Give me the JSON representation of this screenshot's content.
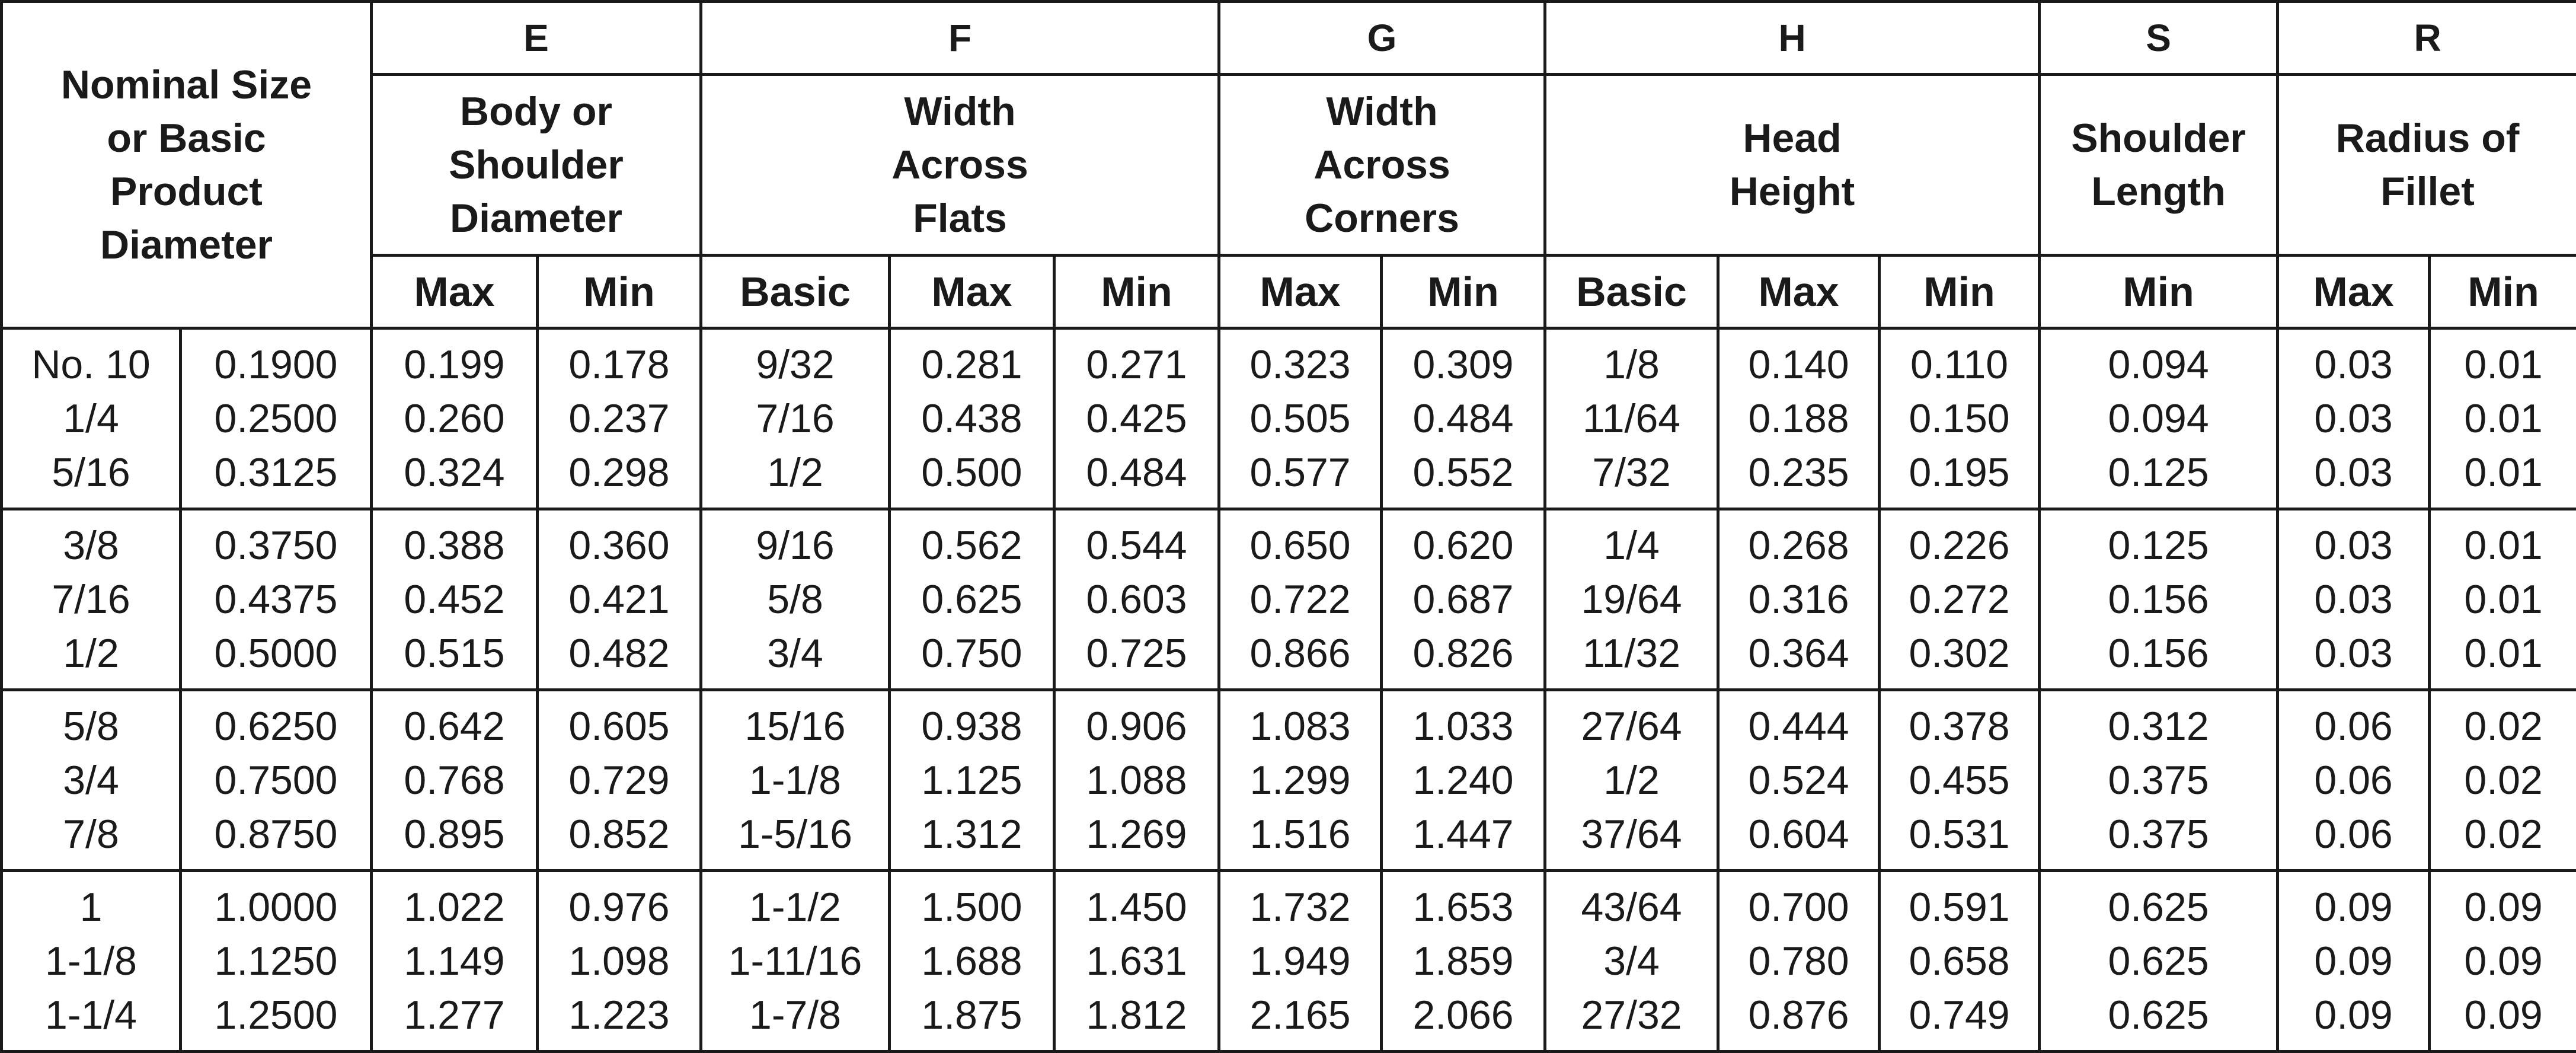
{
  "header": {
    "nominal": [
      "Nominal Size",
      "or Basic",
      "Product",
      "Diameter"
    ],
    "groups": [
      {
        "letter": "E",
        "desc": [
          "Body or",
          "Shoulder",
          "Diameter"
        ],
        "subs": [
          "Max",
          "Min"
        ]
      },
      {
        "letter": "F",
        "desc": [
          "Width",
          "Across",
          "Flats"
        ],
        "subs": [
          "Basic",
          "Max",
          "Min"
        ]
      },
      {
        "letter": "G",
        "desc": [
          "Width",
          "Across",
          "Corners"
        ],
        "subs": [
          "Max",
          "Min"
        ]
      },
      {
        "letter": "H",
        "desc": [
          "Head",
          "Height"
        ],
        "subs": [
          "Basic",
          "Max",
          "Min"
        ]
      },
      {
        "letter": "S",
        "desc": [
          "Shoulder",
          "Length"
        ],
        "subs": [
          "Min"
        ]
      },
      {
        "letter": "R",
        "desc": [
          "Radius of",
          "Fillet"
        ],
        "subs": [
          "Max",
          "Min"
        ]
      }
    ]
  },
  "groups": [
    {
      "size": [
        "No. 10",
        "1/4",
        "5/16"
      ],
      "dec": [
        "0.1900",
        "0.2500",
        "0.3125"
      ],
      "e_max": [
        "0.199",
        "0.260",
        "0.324"
      ],
      "e_min": [
        "0.178",
        "0.237",
        "0.298"
      ],
      "f_basic": [
        "9/32",
        "7/16",
        "1/2"
      ],
      "f_max": [
        "0.281",
        "0.438",
        "0.500"
      ],
      "f_min": [
        "0.271",
        "0.425",
        "0.484"
      ],
      "g_max": [
        "0.323",
        "0.505",
        "0.577"
      ],
      "g_min": [
        "0.309",
        "0.484",
        "0.552"
      ],
      "h_basic": [
        "1/8",
        "11/64",
        "7/32"
      ],
      "h_max": [
        "0.140",
        "0.188",
        "0.235"
      ],
      "h_min": [
        "0.110",
        "0.150",
        "0.195"
      ],
      "s_min": [
        "0.094",
        "0.094",
        "0.125"
      ],
      "r_max": [
        "0.03",
        "0.03",
        "0.03"
      ],
      "r_min": [
        "0.01",
        "0.01",
        "0.01"
      ]
    },
    {
      "size": [
        "3/8",
        "7/16",
        "1/2"
      ],
      "dec": [
        "0.3750",
        "0.4375",
        "0.5000"
      ],
      "e_max": [
        "0.388",
        "0.452",
        "0.515"
      ],
      "e_min": [
        "0.360",
        "0.421",
        "0.482"
      ],
      "f_basic": [
        "9/16",
        "5/8",
        "3/4"
      ],
      "f_max": [
        "0.562",
        "0.625",
        "0.750"
      ],
      "f_min": [
        "0.544",
        "0.603",
        "0.725"
      ],
      "g_max": [
        "0.650",
        "0.722",
        "0.866"
      ],
      "g_min": [
        "0.620",
        "0.687",
        "0.826"
      ],
      "h_basic": [
        "1/4",
        "19/64",
        "11/32"
      ],
      "h_max": [
        "0.268",
        "0.316",
        "0.364"
      ],
      "h_min": [
        "0.226",
        "0.272",
        "0.302"
      ],
      "s_min": [
        "0.125",
        "0.156",
        "0.156"
      ],
      "r_max": [
        "0.03",
        "0.03",
        "0.03"
      ],
      "r_min": [
        "0.01",
        "0.01",
        "0.01"
      ]
    },
    {
      "size": [
        "5/8",
        "3/4",
        "7/8"
      ],
      "dec": [
        "0.6250",
        "0.7500",
        "0.8750"
      ],
      "e_max": [
        "0.642",
        "0.768",
        "0.895"
      ],
      "e_min": [
        "0.605",
        "0.729",
        "0.852"
      ],
      "f_basic": [
        "15/16",
        "1-1/8",
        "1-5/16"
      ],
      "f_max": [
        "0.938",
        "1.125",
        "1.312"
      ],
      "f_min": [
        "0.906",
        "1.088",
        "1.269"
      ],
      "g_max": [
        "1.083",
        "1.299",
        "1.516"
      ],
      "g_min": [
        "1.033",
        "1.240",
        "1.447"
      ],
      "h_basic": [
        "27/64",
        "1/2",
        "37/64"
      ],
      "h_max": [
        "0.444",
        "0.524",
        "0.604"
      ],
      "h_min": [
        "0.378",
        "0.455",
        "0.531"
      ],
      "s_min": [
        "0.312",
        "0.375",
        "0.375"
      ],
      "r_max": [
        "0.06",
        "0.06",
        "0.06"
      ],
      "r_min": [
        "0.02",
        "0.02",
        "0.02"
      ]
    },
    {
      "size": [
        "1",
        "1-1/8",
        "1-1/4"
      ],
      "dec": [
        "1.0000",
        "1.1250",
        "1.2500"
      ],
      "e_max": [
        "1.022",
        "1.149",
        "1.277"
      ],
      "e_min": [
        "0.976",
        "1.098",
        "1.223"
      ],
      "f_basic": [
        "1-1/2",
        "1-11/16",
        "1-7/8"
      ],
      "f_max": [
        "1.500",
        "1.688",
        "1.875"
      ],
      "f_min": [
        "1.450",
        "1.631",
        "1.812"
      ],
      "g_max": [
        "1.732",
        "1.949",
        "2.165"
      ],
      "g_min": [
        "1.653",
        "1.859",
        "2.066"
      ],
      "h_basic": [
        "43/64",
        "3/4",
        "27/32"
      ],
      "h_max": [
        "0.700",
        "0.780",
        "0.876"
      ],
      "h_min": [
        "0.591",
        "0.658",
        "0.749"
      ],
      "s_min": [
        "0.625",
        "0.625",
        "0.625"
      ],
      "r_max": [
        "0.09",
        "0.09",
        "0.09"
      ],
      "r_min": [
        "0.09",
        "0.09",
        "0.09"
      ]
    }
  ]
}
